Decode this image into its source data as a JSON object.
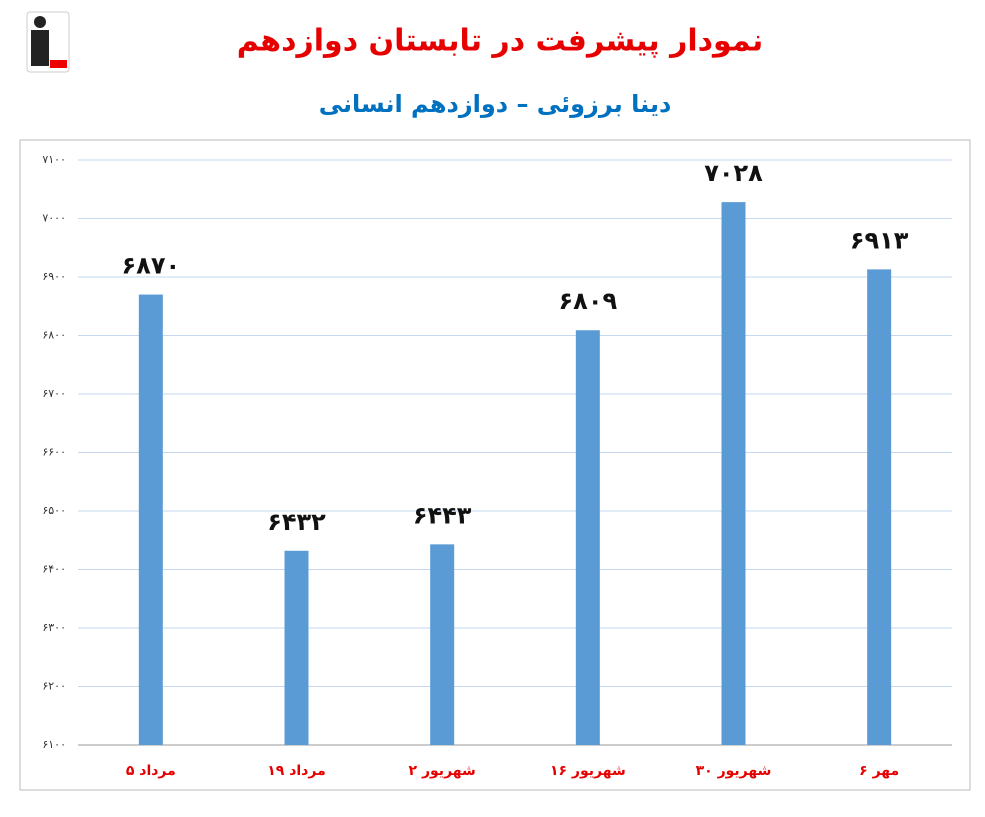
{
  "chart_data": {
    "type": "bar",
    "title": "نمودار پیشرفت در تابستان دوازدهم",
    "subtitle": "دینا برزوئی – دوازدهم انسانی",
    "categories": [
      "۵ مرداد",
      "۱۹ مرداد",
      "۲ شهریور",
      "۱۶ شهریور",
      "۳۰ شهریور",
      "۶ مهر"
    ],
    "values": [
      6870,
      6432,
      6443,
      6809,
      7028,
      6913
    ],
    "value_labels": [
      "۶۸۷۰",
      "۶۴۳۲",
      "۶۴۴۳",
      "۶۸۰۹",
      "۷۰۲۸",
      "۶۹۱۳"
    ],
    "color": "#5b9bd5",
    "ylim": [
      6100,
      7100
    ],
    "yticks": [
      {
        "value": 6100,
        "label": "۶۱۰۰"
      },
      {
        "value": 6200,
        "label": "۶۲۰۰"
      },
      {
        "value": 6300,
        "label": "۶۳۰۰"
      },
      {
        "value": 6400,
        "label": "۶۴۰۰"
      },
      {
        "value": 6500,
        "label": "۶۵۰۰"
      },
      {
        "value": 6600,
        "label": "۶۶۰۰"
      },
      {
        "value": 6700,
        "label": "۶۷۰۰"
      },
      {
        "value": 6800,
        "label": "۶۸۰۰"
      },
      {
        "value": 6900,
        "label": "۶۹۰۰"
      },
      {
        "value": 7000,
        "label": "۷۰۰۰"
      },
      {
        "value": 7100,
        "label": "۷۱۰۰"
      }
    ],
    "grid": true
  }
}
